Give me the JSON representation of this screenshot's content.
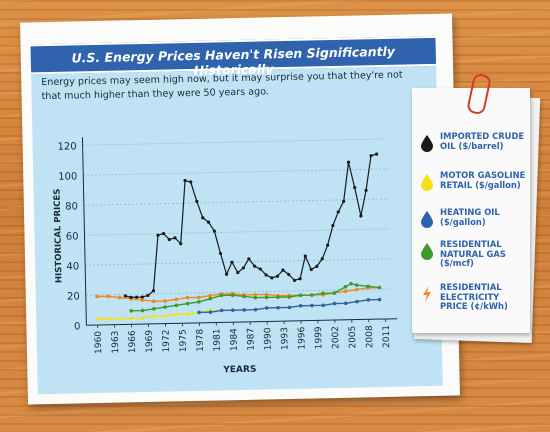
{
  "title": "U.S. Energy Prices Haven't Risen Significantly Historically",
  "intro": "Energy prices may seem high now, but it may surprise you that they're not that much higher than they were 50 years ago.",
  "chart_data": {
    "type": "line",
    "xlabel": "YEARS",
    "ylabel": "HISTORICAL PRICES",
    "ylim": [
      0,
      120
    ],
    "yticks": [
      0,
      20,
      40,
      60,
      80,
      100,
      120
    ],
    "xlim": [
      1958,
      2012
    ],
    "xticks": [
      1960,
      1963,
      1966,
      1969,
      1972,
      1975,
      1978,
      1981,
      1984,
      1987,
      1990,
      1993,
      1996,
      1999,
      2002,
      2005,
      2008,
      2011
    ],
    "grid": true,
    "legend_position": "right",
    "series": [
      {
        "name": "IMPORTED CRUDE OIL ($/barrel)",
        "color": "#1a1a1a",
        "x": [
          1965,
          1966,
          1967,
          1968,
          1969,
          1970,
          1971,
          1972,
          1973,
          1974,
          1975,
          1976,
          1977,
          1978,
          1979,
          1980,
          1981,
          1982,
          1983,
          1984,
          1985,
          1986,
          1987,
          1988,
          1989,
          1990,
          1991,
          1992,
          1993,
          1994,
          1995,
          1996,
          1997,
          1998,
          1999,
          2000,
          2001,
          2002,
          2003,
          2004,
          2005,
          2006,
          2007,
          2008,
          2009,
          2010
        ],
        "values": [
          19,
          18,
          18,
          18,
          19,
          22,
          59,
          60,
          56,
          57,
          53,
          95,
          94,
          81,
          70,
          67,
          61,
          46,
          32,
          40,
          33,
          36,
          42,
          37,
          35,
          31,
          29,
          30,
          34,
          31,
          27,
          28,
          43,
          34,
          36,
          41,
          50,
          63,
          72,
          79,
          105,
          88,
          69,
          86,
          109,
          110
        ]
      },
      {
        "name": "MOTOR GASOLINE RETAIL ($/gallon)",
        "color": "#f2e21a",
        "x": [
          1960,
          1962,
          1964,
          1966,
          1968,
          1970,
          1972,
          1974,
          1976,
          1978,
          1980,
          1982,
          1984,
          1986,
          1988,
          1990,
          1992,
          1994,
          1996,
          1998,
          2000,
          2002,
          2004,
          2006,
          2008,
          2010
        ],
        "values": [
          4,
          4,
          4,
          4,
          4,
          5,
          5,
          6,
          6,
          7,
          8,
          8,
          8,
          8,
          8,
          9,
          9,
          9,
          10,
          10,
          10,
          11,
          11,
          12,
          13,
          13
        ]
      },
      {
        "name": "HEATING OIL ($/gallon)",
        "color": "#2f63ad",
        "x": [
          1978,
          1980,
          1982,
          1984,
          1986,
          1988,
          1990,
          1992,
          1994,
          1996,
          1998,
          2000,
          2002,
          2004,
          2006,
          2008,
          2010
        ],
        "values": [
          7,
          7,
          8,
          8,
          8,
          8,
          9,
          9,
          9,
          10,
          10,
          10,
          11,
          11,
          12,
          13,
          13
        ]
      },
      {
        "name": "RESIDENTIAL NATURAL GAS ($/mcf)",
        "color": "#3f9a2c",
        "x": [
          1966,
          1968,
          1970,
          1972,
          1974,
          1976,
          1978,
          1980,
          1982,
          1984,
          1986,
          1988,
          1990,
          1992,
          1994,
          1996,
          1998,
          2000,
          2002,
          2004,
          2005,
          2006,
          2008,
          2010
        ],
        "values": [
          9,
          9,
          10,
          11,
          12,
          13,
          14,
          16,
          18,
          18,
          17,
          16,
          16,
          16,
          16,
          17,
          17,
          18,
          18,
          22,
          24,
          23,
          22,
          21
        ]
      },
      {
        "name": "RESIDENTIAL ELECTRICITY PRICE (¢/kWh)",
        "color": "#f08a1c",
        "x": [
          1960,
          1962,
          1964,
          1966,
          1968,
          1970,
          1972,
          1974,
          1976,
          1978,
          1980,
          1982,
          1984,
          1986,
          1988,
          1990,
          1992,
          1994,
          1996,
          1998,
          2000,
          2002,
          2004,
          2006,
          2008,
          2010
        ],
        "values": [
          19,
          19,
          18,
          17,
          16,
          15,
          15,
          16,
          17,
          17,
          18,
          19,
          19,
          18,
          18,
          18,
          17,
          17,
          17,
          17,
          17,
          18,
          19,
          20,
          21,
          21
        ]
      }
    ]
  },
  "legend": [
    {
      "label": "IMPORTED CRUDE OIL ($/barrel)",
      "icon": "oil-drop-icon",
      "color": "#1a1a1a"
    },
    {
      "label": "MOTOR GASOLINE RETAIL ($/gallon)",
      "icon": "gas-drop-icon",
      "color": "#f2e21a"
    },
    {
      "label": "HEATING OIL ($/gallon)",
      "icon": "heating-drop-icon",
      "color": "#2f63ad"
    },
    {
      "label": "RESIDENTIAL NATURAL GAS ($/mcf)",
      "icon": "gas-flame-icon",
      "color": "#3f9a2c"
    },
    {
      "label": "RESIDENTIAL ELECTRICITY PRICE (¢/kWh)",
      "icon": "lightning-icon",
      "color": "#f08a1c"
    }
  ]
}
